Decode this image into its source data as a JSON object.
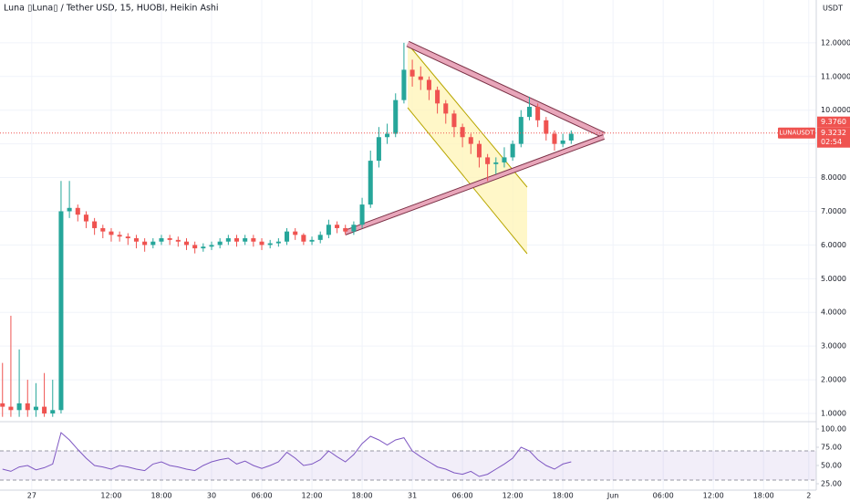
{
  "chart_data": [
    {
      "type": "candlestick",
      "title": "Luna ▯Luna▯ / Tether USD, 15, HUOBI, Heikin Ashi",
      "currency": "USDT",
      "symbol_tag": "LUNAUSDT",
      "countdown": "02:54",
      "up_color": "#26a69a",
      "down_color": "#ef5350",
      "x": [
        -1,
        0,
        1,
        2,
        3,
        4,
        5,
        6,
        7,
        8,
        9,
        10,
        11,
        12,
        13,
        14,
        15,
        16,
        17,
        18,
        19,
        20,
        21,
        22,
        23,
        24,
        25,
        26,
        27,
        28,
        29,
        30,
        31,
        32,
        33,
        34,
        35,
        36,
        37,
        38,
        39,
        40,
        41,
        42,
        43,
        44,
        45,
        46,
        47,
        48,
        49,
        50,
        51,
        52,
        53,
        54,
        55,
        56,
        57,
        58,
        59,
        60,
        61,
        62,
        63,
        64,
        65,
        66,
        67
      ],
      "open": [
        1.3,
        1.2,
        1.1,
        1.3,
        1.1,
        1.2,
        1.0,
        1.1,
        7.0,
        7.1,
        6.9,
        6.7,
        6.5,
        6.4,
        6.3,
        6.25,
        6.2,
        6.1,
        6.0,
        6.1,
        6.2,
        6.15,
        6.1,
        6.0,
        5.9,
        5.95,
        6.0,
        6.1,
        6.2,
        6.1,
        6.2,
        6.1,
        6.0,
        6.05,
        6.1,
        6.4,
        6.3,
        6.1,
        6.15,
        6.3,
        6.6,
        6.5,
        6.4,
        6.6,
        7.2,
        8.5,
        9.2,
        9.3,
        10.3,
        11.2,
        11.0,
        10.9,
        10.6,
        10.2,
        9.9,
        9.5,
        9.2,
        9.0,
        8.6,
        8.4,
        8.45,
        8.6,
        9.0,
        9.8,
        10.1,
        9.7,
        9.3,
        9.0,
        9.1
      ],
      "high": [
        2.5,
        3.9,
        2.9,
        2.0,
        1.9,
        2.2,
        2.0,
        7.9,
        7.9,
        7.2,
        7.0,
        6.8,
        6.6,
        6.5,
        6.4,
        6.35,
        6.3,
        6.2,
        6.2,
        6.3,
        6.3,
        6.25,
        6.2,
        6.1,
        6.05,
        6.1,
        6.2,
        6.3,
        6.3,
        6.3,
        6.3,
        6.2,
        6.15,
        6.2,
        6.5,
        6.5,
        6.35,
        6.25,
        6.4,
        6.75,
        6.7,
        6.6,
        6.7,
        7.4,
        8.8,
        9.5,
        9.6,
        10.5,
        12.0,
        11.5,
        11.3,
        11.0,
        10.7,
        10.3,
        10.0,
        9.6,
        9.3,
        9.1,
        8.7,
        8.6,
        8.9,
        9.1,
        10.0,
        10.4,
        10.2,
        9.8,
        9.4,
        9.3,
        9.4
      ],
      "low": [
        0.9,
        0.9,
        0.9,
        0.9,
        0.9,
        0.9,
        0.9,
        1.0,
        6.8,
        6.7,
        6.5,
        6.3,
        6.2,
        6.1,
        6.1,
        6.0,
        5.9,
        5.8,
        5.9,
        6.0,
        6.0,
        5.95,
        5.85,
        5.75,
        5.8,
        5.85,
        5.9,
        6.0,
        5.95,
        6.0,
        5.95,
        5.85,
        5.9,
        5.95,
        6.0,
        6.15,
        6.0,
        6.0,
        6.05,
        6.2,
        6.35,
        6.3,
        6.3,
        6.5,
        7.1,
        8.3,
        9.0,
        9.2,
        10.2,
        10.7,
        10.6,
        10.3,
        9.9,
        9.6,
        9.2,
        8.9,
        8.7,
        8.3,
        7.9,
        8.1,
        8.3,
        8.5,
        8.9,
        9.7,
        9.5,
        9.1,
        8.8,
        8.9,
        9.0
      ],
      "close": [
        1.2,
        1.1,
        1.3,
        1.1,
        1.2,
        1.0,
        1.1,
        7.0,
        7.1,
        6.9,
        6.7,
        6.5,
        6.4,
        6.3,
        6.25,
        6.2,
        6.1,
        6.0,
        6.1,
        6.2,
        6.15,
        6.1,
        6.0,
        5.9,
        5.95,
        6.0,
        6.1,
        6.2,
        6.1,
        6.2,
        6.1,
        6.0,
        6.05,
        6.1,
        6.4,
        6.3,
        6.1,
        6.15,
        6.3,
        6.6,
        6.5,
        6.4,
        6.6,
        7.2,
        8.5,
        9.2,
        9.3,
        10.3,
        11.2,
        11.0,
        10.9,
        10.6,
        10.2,
        9.9,
        9.5,
        9.2,
        9.0,
        8.6,
        8.4,
        8.45,
        8.6,
        9.0,
        9.8,
        10.1,
        9.7,
        9.3,
        9.0,
        9.1,
        9.3
      ],
      "xlim": [
        -1.3,
        96.3
      ],
      "ylim": [
        0.756,
        13.27
      ],
      "xticks": [
        {
          "value": 2.5,
          "label": "27"
        },
        {
          "value": 12,
          "label": "12:00"
        },
        {
          "value": 18,
          "label": "18:00"
        },
        {
          "value": 24,
          "label": "30"
        },
        {
          "value": 30,
          "label": "06:00"
        },
        {
          "value": 36,
          "label": "12:00"
        },
        {
          "value": 42,
          "label": "18:00"
        },
        {
          "value": 48,
          "label": "31"
        },
        {
          "value": 54,
          "label": "06:00"
        },
        {
          "value": 60,
          "label": "12:00"
        },
        {
          "value": 66,
          "label": "18:00"
        },
        {
          "value": 72,
          "label": "Jun"
        },
        {
          "value": 78,
          "label": "06:00"
        },
        {
          "value": 84,
          "label": "12:00"
        },
        {
          "value": 90,
          "label": "18:00"
        },
        {
          "value": 95.4,
          "label": "2"
        }
      ],
      "yticks": [
        {
          "value": 1,
          "label": "1.0000"
        },
        {
          "value": 2,
          "label": "2.0000"
        },
        {
          "value": 3,
          "label": "3.0000"
        },
        {
          "value": 4,
          "label": "4.0000"
        },
        {
          "value": 5,
          "label": "5.0000"
        },
        {
          "value": 6,
          "label": "6.0000"
        },
        {
          "value": 7,
          "label": "7.0000"
        },
        {
          "value": 8,
          "label": "8.0000"
        },
        {
          "value": 9,
          "label": "9.0000"
        },
        {
          "value": 10,
          "label": "10.0000"
        },
        {
          "value": 11,
          "label": "11.0000"
        },
        {
          "value": 12,
          "label": "12.0000"
        }
      ],
      "last_price": {
        "value": 9.3232,
        "label": "9.3232"
      },
      "high_price": {
        "value": 9.376,
        "label": "9.3760"
      },
      "grid": true
    },
    {
      "type": "line",
      "x": [
        -1,
        0,
        1,
        2,
        3,
        4,
        5,
        6,
        7,
        8,
        9,
        10,
        11,
        12,
        13,
        14,
        15,
        16,
        17,
        18,
        19,
        20,
        21,
        22,
        23,
        24,
        25,
        26,
        27,
        28,
        29,
        30,
        31,
        32,
        33,
        34,
        35,
        36,
        37,
        38,
        39,
        40,
        41,
        42,
        43,
        44,
        45,
        46,
        47,
        48,
        49,
        50,
        51,
        52,
        53,
        54,
        55,
        56,
        57,
        58,
        59,
        60,
        61,
        62,
        63,
        64,
        65,
        66,
        67
      ],
      "values": [
        45,
        42,
        48,
        50,
        44,
        47,
        52,
        95,
        85,
        72,
        60,
        50,
        48,
        45,
        50,
        48,
        45,
        43,
        52,
        55,
        50,
        48,
        45,
        43,
        50,
        55,
        58,
        60,
        52,
        56,
        50,
        46,
        50,
        55,
        68,
        60,
        50,
        52,
        58,
        70,
        62,
        55,
        65,
        80,
        90,
        85,
        78,
        85,
        88,
        70,
        62,
        55,
        48,
        45,
        40,
        38,
        42,
        35,
        38,
        45,
        52,
        60,
        75,
        70,
        58,
        50,
        45,
        52,
        55
      ],
      "color": "#7e57c2",
      "band": [
        30,
        70
      ],
      "xlim": [
        -1.3,
        96.3
      ],
      "ylim": [
        16.25,
        110
      ],
      "yticks": [
        {
          "value": 100,
          "label": "100.00"
        },
        {
          "value": 75,
          "label": "75.00"
        },
        {
          "value": 50,
          "label": "50.00"
        },
        {
          "value": 25,
          "label": "25.00"
        }
      ]
    }
  ]
}
